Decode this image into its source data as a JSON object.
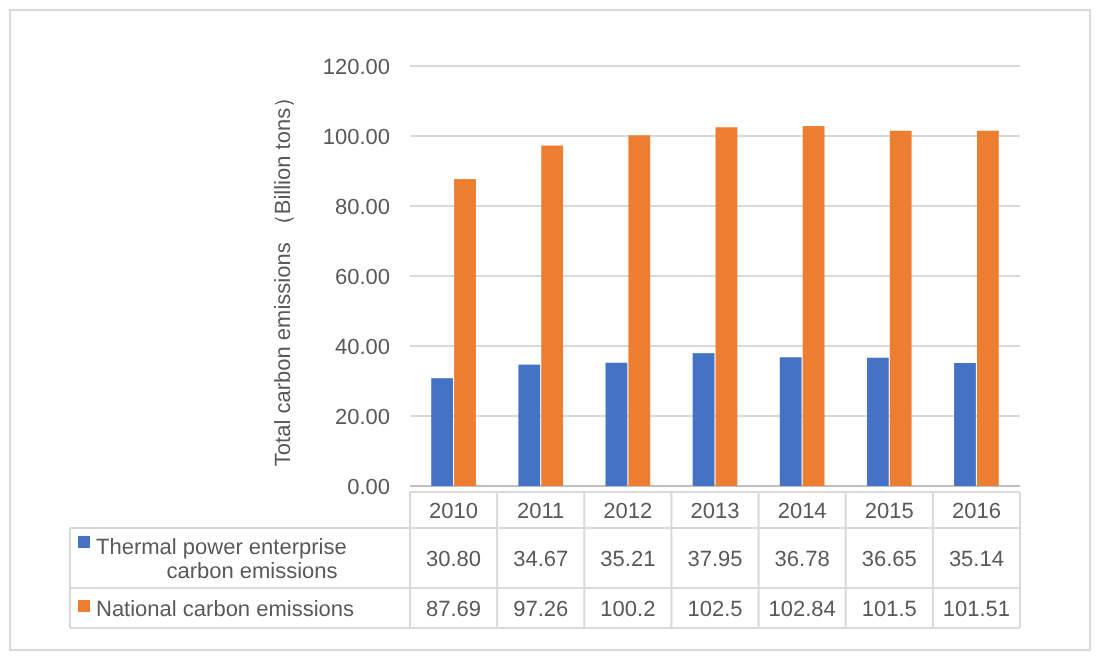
{
  "chart_data": {
    "type": "bar",
    "ylabel": "Total carbon emissions （Billion tons）",
    "categories": [
      "2010",
      "2011",
      "2012",
      "2013",
      "2014",
      "2015",
      "2016"
    ],
    "series": [
      {
        "name": "Thermal power enterprise carbon emissions",
        "color": "#4472c4",
        "values": [
          30.8,
          34.67,
          35.21,
          37.95,
          36.78,
          36.65,
          35.14
        ],
        "value_labels": [
          "30.80",
          "34.67",
          "35.21",
          "37.95",
          "36.78",
          "36.65",
          "35.14"
        ]
      },
      {
        "name": "National carbon emissions",
        "color": "#ed7d31",
        "values": [
          87.69,
          97.26,
          100.2,
          102.5,
          102.84,
          101.5,
          101.51
        ],
        "value_labels": [
          "87.69",
          "97.26",
          "100.2",
          "102.5",
          "102.84",
          "101.5",
          "101.51"
        ]
      }
    ],
    "ylim": [
      0,
      120
    ],
    "yticks": [
      {
        "value": 0,
        "label": "0.00"
      },
      {
        "value": 20,
        "label": "20.00"
      },
      {
        "value": 40,
        "label": "40.00"
      },
      {
        "value": 60,
        "label": "60.00"
      },
      {
        "value": 80,
        "label": "80.00"
      },
      {
        "value": 100,
        "label": "100.00"
      },
      {
        "value": 120,
        "label": "120.00"
      }
    ],
    "grid": "y",
    "legend": "bottom"
  }
}
